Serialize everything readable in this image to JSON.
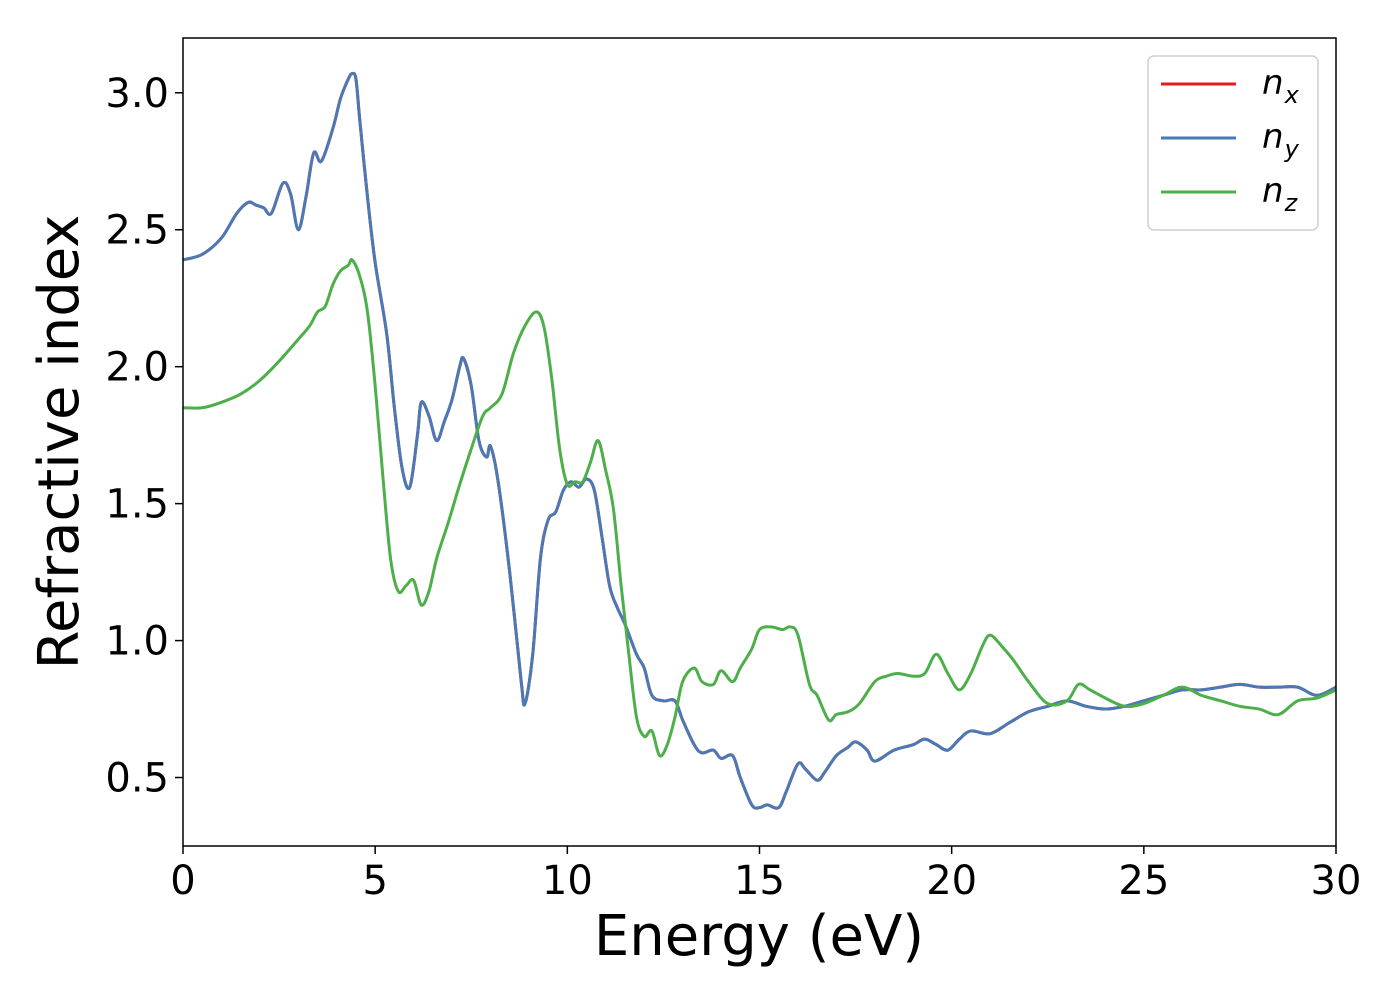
{
  "chart_data": {
    "type": "line",
    "xlabel": "Energy (eV)",
    "ylabel": "Refractive index",
    "xlim": [
      0,
      30
    ],
    "ylim": [
      0.25,
      3.2
    ],
    "xticks": [
      "0",
      "5",
      "10",
      "15",
      "20",
      "25",
      "30"
    ],
    "yticks": [
      "0.5",
      "1.0",
      "1.5",
      "2.0",
      "2.5",
      "3.0"
    ],
    "grid": false,
    "legend": "top-right",
    "series": [
      {
        "name": "n",
        "sub": "x",
        "color": "#e41a1c",
        "x": [
          0,
          0.5,
          1.0,
          1.4,
          1.7,
          1.9,
          2.1,
          2.3,
          2.6,
          2.8,
          3.0,
          3.2,
          3.4,
          3.6,
          3.9,
          4.1,
          4.3,
          4.4,
          4.5,
          4.6,
          4.8,
          5.0,
          5.3,
          5.5,
          5.7,
          5.9,
          6.1,
          6.2,
          6.4,
          6.6,
          6.8,
          7.0,
          7.2,
          7.3,
          7.5,
          7.7,
          7.9,
          8.0,
          8.2,
          8.5,
          8.8,
          8.9,
          9.1,
          9.3,
          9.5,
          9.7,
          9.9,
          10.1,
          10.3,
          10.5,
          10.7,
          10.9,
          11.1,
          11.3,
          11.5,
          11.8,
          12.0,
          12.2,
          12.5,
          12.8,
          13.0,
          13.3,
          13.5,
          13.8,
          14.0,
          14.3,
          14.5,
          14.8,
          15.0,
          15.2,
          15.5,
          15.7,
          16.0,
          16.2,
          16.5,
          16.7,
          17.0,
          17.3,
          17.5,
          17.8,
          18.0,
          18.5,
          19.0,
          19.3,
          19.6,
          19.9,
          20.2,
          20.5,
          21.0,
          21.5,
          22.0,
          22.5,
          23.0,
          23.5,
          24.0,
          24.5,
          25.0,
          25.5,
          26.0,
          26.5,
          27.0,
          27.5,
          28.0,
          28.5,
          29.0,
          29.5,
          30.0
        ],
        "values": [
          2.39,
          2.41,
          2.47,
          2.56,
          2.6,
          2.59,
          2.58,
          2.56,
          2.67,
          2.63,
          2.5,
          2.62,
          2.78,
          2.75,
          2.87,
          2.98,
          3.05,
          3.07,
          3.05,
          2.9,
          2.62,
          2.38,
          2.12,
          1.85,
          1.63,
          1.56,
          1.75,
          1.87,
          1.82,
          1.73,
          1.8,
          1.88,
          2.0,
          2.03,
          1.93,
          1.73,
          1.67,
          1.71,
          1.58,
          1.25,
          0.85,
          0.77,
          0.95,
          1.3,
          1.44,
          1.47,
          1.55,
          1.58,
          1.56,
          1.59,
          1.55,
          1.38,
          1.2,
          1.12,
          1.06,
          0.95,
          0.9,
          0.8,
          0.78,
          0.78,
          0.71,
          0.62,
          0.59,
          0.6,
          0.57,
          0.58,
          0.5,
          0.4,
          0.39,
          0.4,
          0.39,
          0.45,
          0.55,
          0.53,
          0.49,
          0.52,
          0.58,
          0.61,
          0.63,
          0.6,
          0.56,
          0.6,
          0.62,
          0.64,
          0.62,
          0.6,
          0.64,
          0.67,
          0.66,
          0.7,
          0.74,
          0.76,
          0.78,
          0.76,
          0.75,
          0.76,
          0.78,
          0.8,
          0.82,
          0.82,
          0.83,
          0.84,
          0.83,
          0.83,
          0.83,
          0.8,
          0.83
        ]
      },
      {
        "name": "n",
        "sub": "y",
        "color": "#4a7ab5",
        "x": [
          0,
          0.5,
          1.0,
          1.4,
          1.7,
          1.9,
          2.1,
          2.3,
          2.6,
          2.8,
          3.0,
          3.2,
          3.4,
          3.6,
          3.9,
          4.1,
          4.3,
          4.4,
          4.5,
          4.6,
          4.8,
          5.0,
          5.3,
          5.5,
          5.7,
          5.9,
          6.1,
          6.2,
          6.4,
          6.6,
          6.8,
          7.0,
          7.2,
          7.3,
          7.5,
          7.7,
          7.9,
          8.0,
          8.2,
          8.5,
          8.8,
          8.9,
          9.1,
          9.3,
          9.5,
          9.7,
          9.9,
          10.1,
          10.3,
          10.5,
          10.7,
          10.9,
          11.1,
          11.3,
          11.5,
          11.8,
          12.0,
          12.2,
          12.5,
          12.8,
          13.0,
          13.3,
          13.5,
          13.8,
          14.0,
          14.3,
          14.5,
          14.8,
          15.0,
          15.2,
          15.5,
          15.7,
          16.0,
          16.2,
          16.5,
          16.7,
          17.0,
          17.3,
          17.5,
          17.8,
          18.0,
          18.5,
          19.0,
          19.3,
          19.6,
          19.9,
          20.2,
          20.5,
          21.0,
          21.5,
          22.0,
          22.5,
          23.0,
          23.5,
          24.0,
          24.5,
          25.0,
          25.5,
          26.0,
          26.5,
          27.0,
          27.5,
          28.0,
          28.5,
          29.0,
          29.5,
          30.0
        ],
        "values": [
          2.39,
          2.41,
          2.47,
          2.56,
          2.6,
          2.59,
          2.58,
          2.56,
          2.67,
          2.63,
          2.5,
          2.62,
          2.78,
          2.75,
          2.87,
          2.98,
          3.05,
          3.07,
          3.05,
          2.9,
          2.62,
          2.38,
          2.12,
          1.85,
          1.63,
          1.56,
          1.75,
          1.87,
          1.82,
          1.73,
          1.8,
          1.88,
          2.0,
          2.03,
          1.93,
          1.73,
          1.67,
          1.71,
          1.58,
          1.25,
          0.85,
          0.77,
          0.95,
          1.3,
          1.44,
          1.47,
          1.55,
          1.58,
          1.56,
          1.59,
          1.55,
          1.38,
          1.2,
          1.12,
          1.06,
          0.95,
          0.9,
          0.8,
          0.78,
          0.78,
          0.71,
          0.62,
          0.59,
          0.6,
          0.57,
          0.58,
          0.5,
          0.4,
          0.39,
          0.4,
          0.39,
          0.45,
          0.55,
          0.53,
          0.49,
          0.52,
          0.58,
          0.61,
          0.63,
          0.6,
          0.56,
          0.6,
          0.62,
          0.64,
          0.62,
          0.6,
          0.64,
          0.67,
          0.66,
          0.7,
          0.74,
          0.76,
          0.78,
          0.76,
          0.75,
          0.76,
          0.78,
          0.8,
          0.82,
          0.82,
          0.83,
          0.84,
          0.83,
          0.83,
          0.83,
          0.8,
          0.83
        ]
      },
      {
        "name": "n",
        "sub": "z",
        "color": "#4daf4a",
        "x": [
          0,
          0.5,
          1.0,
          1.5,
          2.0,
          2.5,
          3.0,
          3.3,
          3.5,
          3.7,
          3.9,
          4.1,
          4.3,
          4.4,
          4.6,
          4.8,
          5.0,
          5.2,
          5.4,
          5.6,
          5.8,
          6.0,
          6.2,
          6.4,
          6.6,
          6.9,
          7.2,
          7.5,
          7.8,
          8.0,
          8.3,
          8.6,
          8.9,
          9.2,
          9.4,
          9.6,
          9.8,
          10.0,
          10.2,
          10.4,
          10.6,
          10.8,
          11.0,
          11.2,
          11.4,
          11.6,
          11.8,
          12.0,
          12.2,
          12.4,
          12.6,
          12.8,
          13.0,
          13.3,
          13.5,
          13.8,
          14.0,
          14.3,
          14.5,
          14.8,
          15.0,
          15.3,
          15.6,
          15.8,
          16.0,
          16.3,
          16.5,
          16.8,
          17.0,
          17.3,
          17.6,
          18.0,
          18.3,
          18.6,
          19.0,
          19.3,
          19.6,
          19.9,
          20.2,
          20.5,
          20.8,
          21.0,
          21.3,
          21.6,
          22.0,
          22.5,
          23.0,
          23.3,
          23.6,
          24.0,
          24.5,
          25.0,
          25.5,
          26.0,
          26.5,
          27.0,
          27.5,
          28.0,
          28.5,
          29.0,
          29.5,
          30.0
        ],
        "values": [
          1.85,
          1.85,
          1.87,
          1.9,
          1.95,
          2.02,
          2.1,
          2.15,
          2.2,
          2.22,
          2.3,
          2.35,
          2.37,
          2.39,
          2.33,
          2.2,
          1.93,
          1.6,
          1.3,
          1.18,
          1.2,
          1.22,
          1.13,
          1.18,
          1.3,
          1.43,
          1.57,
          1.7,
          1.82,
          1.85,
          1.9,
          2.05,
          2.15,
          2.2,
          2.14,
          1.95,
          1.7,
          1.57,
          1.58,
          1.58,
          1.65,
          1.73,
          1.62,
          1.48,
          1.2,
          0.95,
          0.72,
          0.65,
          0.67,
          0.58,
          0.62,
          0.72,
          0.85,
          0.9,
          0.85,
          0.84,
          0.89,
          0.85,
          0.9,
          0.97,
          1.04,
          1.05,
          1.04,
          1.05,
          1.02,
          0.84,
          0.8,
          0.71,
          0.73,
          0.74,
          0.77,
          0.85,
          0.87,
          0.88,
          0.87,
          0.88,
          0.95,
          0.88,
          0.82,
          0.88,
          0.98,
          1.02,
          0.98,
          0.93,
          0.85,
          0.77,
          0.78,
          0.84,
          0.82,
          0.79,
          0.76,
          0.77,
          0.8,
          0.83,
          0.8,
          0.78,
          0.76,
          0.75,
          0.73,
          0.78,
          0.79,
          0.82
        ]
      }
    ]
  }
}
